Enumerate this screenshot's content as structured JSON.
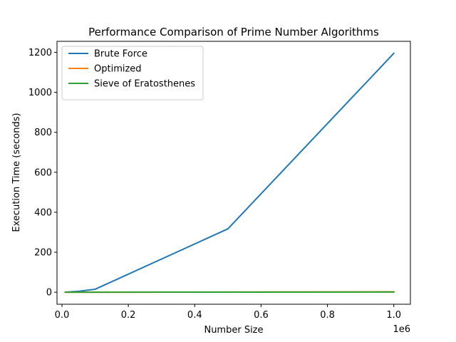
{
  "chart_data": {
    "type": "line",
    "title": "Performance Comparison of Prime Number Algorithms",
    "xlabel": "Number Size",
    "ylabel": "Execution Time (seconds)",
    "x_offset_label": "1e6",
    "x": [
      10000,
      50000,
      100000,
      500000,
      1000000
    ],
    "xlim": [
      -15000,
      1050000
    ],
    "ylim": [
      -60,
      1255
    ],
    "xticks": [
      0,
      200000,
      400000,
      600000,
      800000,
      1000000
    ],
    "xtick_labels": [
      "0.0",
      "0.2",
      "0.4",
      "0.6",
      "0.8",
      "1.0"
    ],
    "yticks": [
      0,
      200,
      400,
      600,
      800,
      1000,
      1200
    ],
    "ytick_labels": [
      "0",
      "200",
      "400",
      "600",
      "800",
      "1000",
      "1200"
    ],
    "grid": false,
    "legend_position": "upper-left",
    "series": [
      {
        "name": "Brute Force",
        "color": "#1f77b4",
        "values": [
          0.8,
          4.5,
          15,
          317,
          1195
        ]
      },
      {
        "name": "Optimized",
        "color": "#ff7f0e",
        "values": [
          0.02,
          0.1,
          0.2,
          1.0,
          2.2
        ]
      },
      {
        "name": "Sieve of Eratosthenes",
        "color": "#2ca02c",
        "values": [
          0.01,
          0.05,
          0.1,
          0.5,
          1.2
        ]
      }
    ]
  }
}
